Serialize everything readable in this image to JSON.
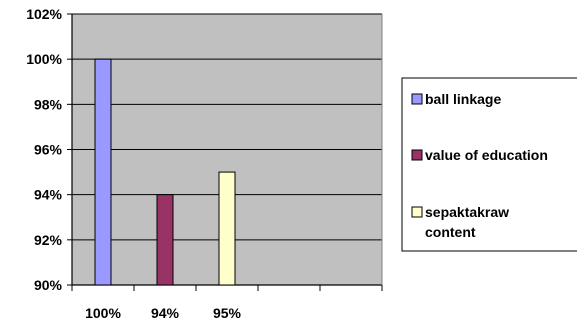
{
  "chart_data": {
    "type": "bar",
    "categories": [
      "100%",
      "94%",
      "95%"
    ],
    "series": [
      {
        "name": "ball linkage",
        "values": [
          100,
          null,
          null
        ],
        "color": "#9999ff"
      },
      {
        "name": "value of education",
        "values": [
          null,
          94,
          null
        ],
        "color": "#993366"
      },
      {
        "name": "sepaktakraw content",
        "values": [
          null,
          null,
          95
        ],
        "color": "#ffffcc"
      }
    ],
    "legend_lines": [
      [
        "ball linkage"
      ],
      [
        "value of education"
      ],
      [
        "sepaktakraw",
        "content"
      ]
    ],
    "y_ticks": [
      "90%",
      "92%",
      "94%",
      "96%",
      "98%",
      "100%",
      "102%"
    ],
    "ylim": [
      90,
      102
    ],
    "ytick_step": 2,
    "grid": true,
    "plot_background": "#c0c0c0",
    "legend_position": "right",
    "title": "",
    "xlabel": "",
    "ylabel": ""
  }
}
